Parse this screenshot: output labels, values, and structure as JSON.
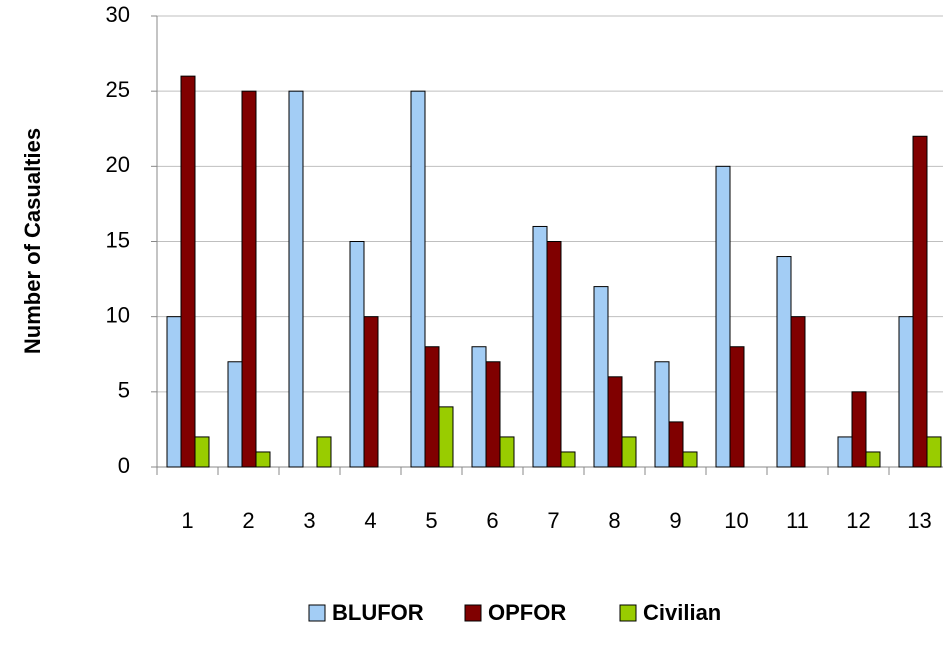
{
  "chart_data": {
    "type": "bar",
    "y_label": "Number of Casualties",
    "categories": [
      "1",
      "2",
      "3",
      "4",
      "5",
      "6",
      "7",
      "8",
      "9",
      "10",
      "11",
      "12",
      "13"
    ],
    "series": [
      {
        "name": "BLUFOR",
        "color": "#a3cdf5",
        "values": [
          10,
          7,
          25,
          15,
          25,
          8,
          16,
          12,
          7,
          20,
          14,
          2,
          10
        ]
      },
      {
        "name": "OPFOR",
        "color": "#800000",
        "values": [
          26,
          25,
          0,
          10,
          8,
          7,
          15,
          6,
          3,
          8,
          10,
          5,
          22
        ]
      },
      {
        "name": "Civilian",
        "color": "#99cc00",
        "values": [
          2,
          1,
          2,
          0,
          4,
          2,
          1,
          2,
          1,
          0,
          0,
          1,
          2
        ]
      }
    ],
    "ylim": [
      0,
      30
    ],
    "yticks": [
      0,
      5,
      10,
      15,
      20,
      25,
      30
    ],
    "grid": true,
    "legend": "bottom"
  }
}
